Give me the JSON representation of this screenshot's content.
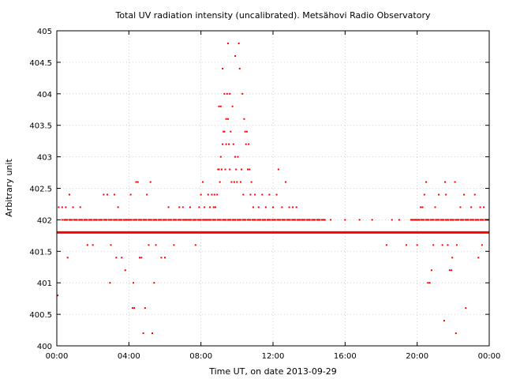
{
  "chart_data": {
    "type": "scatter",
    "title": "Total UV radiation intensity (uncalibrated). Metsähovi Radio Observatory",
    "xlabel": "Time UT, on date 2013-09-29",
    "ylabel": "Arbitrary unit",
    "xlim": [
      0,
      24
    ],
    "ylim": [
      400,
      405
    ],
    "x_ticks": [
      0,
      4,
      8,
      12,
      16,
      20,
      24
    ],
    "x_tick_labels": [
      "00:00",
      "04:00",
      "08:00",
      "12:00",
      "16:00",
      "20:00",
      "00:00"
    ],
    "y_ticks": [
      400,
      400.5,
      401,
      401.5,
      402,
      402.5,
      403,
      403.5,
      404,
      404.5,
      405
    ],
    "y_tick_labels": [
      "400",
      "400.5",
      "401",
      "401.5",
      "402",
      "402.5",
      "403",
      "403.5",
      "404",
      "404.5",
      "405"
    ],
    "grid": true,
    "marker_color": "#ff0000",
    "baseline_band": {
      "y": 401.8,
      "x_start": 0,
      "x_end": 24
    },
    "series": [
      {
        "points": [
          [
            0.05,
            400.8
          ],
          [
            0.1,
            402.2
          ],
          [
            0.3,
            402.2
          ],
          [
            0.5,
            402.2
          ],
          [
            0.6,
            401.4
          ],
          [
            0.7,
            402.4
          ],
          [
            0.9,
            402.2
          ],
          [
            1.3,
            402.2
          ],
          [
            1.7,
            401.6
          ],
          [
            2.0,
            401.6
          ],
          [
            2.2,
            402
          ],
          [
            2.6,
            402.4
          ],
          [
            2.8,
            402.4
          ],
          [
            2.95,
            401.0
          ],
          [
            3.0,
            401.6
          ],
          [
            3.2,
            402.4
          ],
          [
            3.3,
            401.4
          ],
          [
            3.4,
            402.2
          ],
          [
            3.6,
            401.4
          ],
          [
            3.8,
            401.2
          ],
          [
            3.9,
            402
          ],
          [
            4.1,
            402.4
          ],
          [
            4.2,
            400.6
          ],
          [
            4.25,
            401.0
          ],
          [
            4.3,
            400.6
          ],
          [
            4.4,
            402.6
          ],
          [
            4.5,
            402.6
          ],
          [
            4.6,
            401.4
          ],
          [
            4.7,
            401.4
          ],
          [
            4.8,
            400.2
          ],
          [
            4.9,
            400.6
          ],
          [
            5.0,
            402.4
          ],
          [
            5.1,
            401.6
          ],
          [
            5.2,
            402.6
          ],
          [
            5.3,
            400.2
          ],
          [
            5.4,
            401.0
          ],
          [
            5.5,
            401.6
          ],
          [
            5.8,
            401.4
          ],
          [
            6.0,
            401.4
          ],
          [
            6.2,
            402.2
          ],
          [
            6.5,
            401.6
          ],
          [
            6.8,
            402.2
          ],
          [
            7.0,
            402.2
          ],
          [
            7.2,
            402
          ],
          [
            7.4,
            402.2
          ],
          [
            7.7,
            401.6
          ],
          [
            7.9,
            402.2
          ],
          [
            8.0,
            402.4
          ],
          [
            8.1,
            402.6
          ],
          [
            8.2,
            402.2
          ],
          [
            8.3,
            402
          ],
          [
            8.4,
            402.4
          ],
          [
            8.5,
            402.2
          ],
          [
            8.6,
            402.4
          ],
          [
            8.7,
            402.2
          ],
          [
            8.75,
            402.4
          ],
          [
            8.8,
            402.2
          ],
          [
            8.9,
            402.4
          ],
          [
            8.95,
            402.8
          ],
          [
            9.0,
            403.8
          ],
          [
            9.0,
            402.8
          ],
          [
            9.05,
            402.6
          ],
          [
            9.1,
            403.8
          ],
          [
            9.1,
            403.0
          ],
          [
            9.15,
            402.8
          ],
          [
            9.2,
            404.4
          ],
          [
            9.2,
            403.2
          ],
          [
            9.25,
            403.4
          ],
          [
            9.3,
            404.0
          ],
          [
            9.3,
            403.4
          ],
          [
            9.35,
            402.8
          ],
          [
            9.4,
            403.6
          ],
          [
            9.4,
            403.2
          ],
          [
            9.45,
            404.0
          ],
          [
            9.5,
            404.8
          ],
          [
            9.5,
            403.6
          ],
          [
            9.55,
            403.2
          ],
          [
            9.6,
            404.0
          ],
          [
            9.6,
            402.8
          ],
          [
            9.65,
            403.4
          ],
          [
            9.7,
            402.6
          ],
          [
            9.75,
            403.8
          ],
          [
            9.8,
            403.2
          ],
          [
            9.85,
            402.6
          ],
          [
            9.9,
            404.6
          ],
          [
            9.9,
            403.0
          ],
          [
            9.95,
            402.8
          ],
          [
            10.0,
            402.6
          ],
          [
            10.05,
            403.0
          ],
          [
            10.1,
            404.8
          ],
          [
            10.15,
            404.4
          ],
          [
            10.2,
            402.6
          ],
          [
            10.25,
            402.8
          ],
          [
            10.3,
            404.0
          ],
          [
            10.35,
            402.4
          ],
          [
            10.4,
            403.6
          ],
          [
            10.45,
            403.4
          ],
          [
            10.5,
            403.2
          ],
          [
            10.55,
            403.4
          ],
          [
            10.6,
            402.8
          ],
          [
            10.65,
            403.2
          ],
          [
            10.7,
            402.8
          ],
          [
            10.75,
            402.4
          ],
          [
            10.8,
            402.6
          ],
          [
            10.9,
            402.2
          ],
          [
            11.0,
            402.4
          ],
          [
            11.2,
            402.2
          ],
          [
            11.4,
            402.4
          ],
          [
            11.6,
            402.2
          ],
          [
            11.8,
            402.4
          ],
          [
            12.0,
            402.2
          ],
          [
            12.2,
            402.4
          ],
          [
            12.3,
            402.8
          ],
          [
            12.5,
            402.2
          ],
          [
            12.7,
            402.6
          ],
          [
            12.9,
            402.2
          ],
          [
            13.1,
            402.2
          ],
          [
            13.3,
            402.2
          ],
          [
            13.6,
            402
          ],
          [
            14.0,
            402
          ],
          [
            14.5,
            402
          ],
          [
            15.2,
            402
          ],
          [
            16.0,
            402
          ],
          [
            16.8,
            402
          ],
          [
            17.5,
            402
          ],
          [
            18.3,
            401.6
          ],
          [
            18.6,
            402
          ],
          [
            19.0,
            402
          ],
          [
            19.4,
            401.6
          ],
          [
            19.7,
            402
          ],
          [
            19.9,
            402
          ],
          [
            20.0,
            401.6
          ],
          [
            20.1,
            402
          ],
          [
            20.2,
            402.2
          ],
          [
            20.3,
            402.2
          ],
          [
            20.4,
            402.4
          ],
          [
            20.5,
            402.6
          ],
          [
            20.6,
            401.0
          ],
          [
            20.7,
            401.0
          ],
          [
            20.8,
            401.2
          ],
          [
            20.9,
            401.6
          ],
          [
            21.0,
            402.2
          ],
          [
            21.2,
            402.4
          ],
          [
            21.4,
            401.6
          ],
          [
            21.5,
            400.4
          ],
          [
            21.55,
            402.6
          ],
          [
            21.6,
            402.4
          ],
          [
            21.7,
            401.6
          ],
          [
            21.8,
            401.2
          ],
          [
            21.9,
            401.2
          ],
          [
            21.95,
            401.4
          ],
          [
            22.1,
            402.6
          ],
          [
            22.15,
            400.2
          ],
          [
            22.2,
            401.6
          ],
          [
            22.4,
            402.2
          ],
          [
            22.6,
            402.4
          ],
          [
            22.7,
            400.6
          ],
          [
            22.8,
            402
          ],
          [
            23.0,
            402.2
          ],
          [
            23.2,
            402.4
          ],
          [
            23.4,
            401.4
          ],
          [
            23.5,
            402.2
          ],
          [
            23.6,
            401.6
          ],
          [
            23.7,
            402.2
          ],
          [
            23.9,
            402
          ]
        ],
        "row_402": {
          "y": 402,
          "ranges": [
            [
              0.3,
              14.9
            ],
            [
              19.6,
              24
            ]
          ]
        }
      }
    ]
  }
}
